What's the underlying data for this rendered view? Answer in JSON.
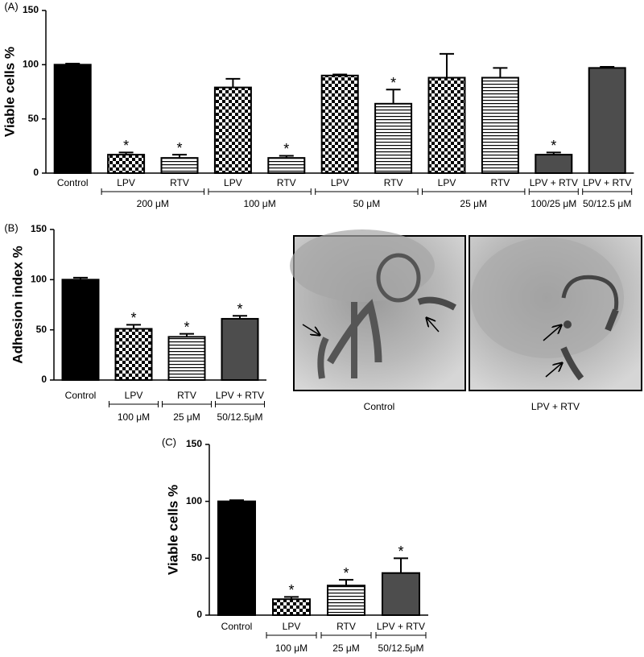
{
  "chart_data": [
    {
      "type": "bar",
      "label": "(A)",
      "ylabel": "Viable cells %",
      "categories": [
        "Control",
        "LPV",
        "RTV",
        "LPV",
        "RTV",
        "LPV",
        "RTV",
        "LPV",
        "RTV",
        "LPV + RTV",
        "LPV + RTV"
      ],
      "values": [
        100,
        17,
        14,
        79,
        14,
        90,
        64,
        88,
        88,
        17,
        97
      ],
      "errors": [
        1,
        2,
        3,
        8,
        2,
        1,
        13,
        22,
        9,
        2,
        1
      ],
      "markers": [
        null,
        "*",
        "*",
        null,
        "*",
        null,
        "*",
        null,
        null,
        "*",
        null
      ],
      "group_labels": [
        null,
        "200 μM",
        null,
        "100 μM",
        null,
        "50 μM",
        null,
        "25 μM",
        null,
        "100/25 μM",
        "50/12.5 μM"
      ],
      "fills": [
        "solid",
        "checker",
        "hlines",
        "checker",
        "hlines",
        "checker",
        "hlines",
        "checker",
        "hlines",
        "gray",
        "gray"
      ],
      "ylim": [
        0,
        150
      ],
      "yticks": [
        0,
        50,
        100,
        150
      ]
    },
    {
      "type": "bar",
      "label": "(B)",
      "ylabel": "Adhesion index %",
      "categories": [
        "Control",
        "LPV",
        "RTV",
        "LPV + RTV"
      ],
      "values": [
        100,
        51,
        43,
        61
      ],
      "errors": [
        2,
        4,
        3,
        3
      ],
      "markers": [
        null,
        "*",
        "*",
        "*"
      ],
      "group_labels": [
        null,
        "100 μM",
        "25 μM",
        "50/12.5μM"
      ],
      "fills": [
        "solid",
        "checker",
        "hlines",
        "gray"
      ],
      "ylim": [
        0,
        150
      ],
      "yticks": [
        0,
        50,
        100,
        150
      ]
    },
    {
      "type": "bar",
      "label": "(C)",
      "ylabel": "Viable cells %",
      "categories": [
        "Control",
        "LPV",
        "RTV",
        "LPV + RTV"
      ],
      "values": [
        100,
        14,
        26,
        37
      ],
      "errors": [
        1,
        2,
        5,
        13
      ],
      "markers": [
        null,
        "*",
        "*",
        "*"
      ],
      "group_labels": [
        null,
        "100 μM",
        "25 μM",
        "50/12.5μM"
      ],
      "fills": [
        "solid",
        "checker",
        "hlines",
        "gray"
      ],
      "ylim": [
        0,
        150
      ],
      "yticks": [
        0,
        50,
        100,
        150
      ]
    }
  ],
  "micrographs": {
    "captions": [
      "Control",
      "LPV + RTV"
    ]
  }
}
